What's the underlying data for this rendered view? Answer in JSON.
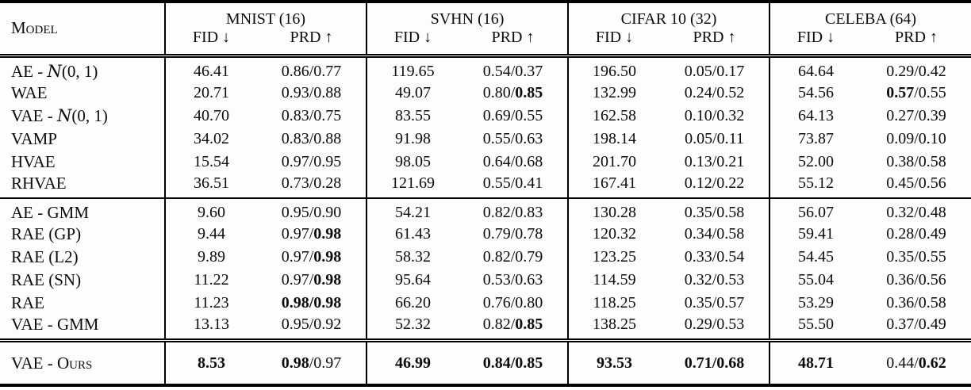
{
  "table": {
    "header": {
      "model_label": "Model",
      "col_fid": "FID ↓",
      "col_prd": "PRD ↑",
      "groups": [
        "MNIST (16)",
        "SVHN (16)",
        "CIFAR 10 (32)",
        "CELEBA (64)"
      ]
    },
    "sections": [
      {
        "rows": [
          {
            "model": "AE - 𝒩(0, 1)",
            "cells": [
              [
                {
                  "t": "46.41",
                  "b": false
                }
              ],
              [
                {
                  "t": "0.86/0.77",
                  "b": false
                }
              ],
              [
                {
                  "t": "119.65",
                  "b": false
                }
              ],
              [
                {
                  "t": "0.54/0.37",
                  "b": false
                }
              ],
              [
                {
                  "t": "196.50",
                  "b": false
                }
              ],
              [
                {
                  "t": "0.05/0.17",
                  "b": false
                }
              ],
              [
                {
                  "t": "64.64",
                  "b": false
                }
              ],
              [
                {
                  "t": "0.29/0.42",
                  "b": false
                }
              ]
            ]
          },
          {
            "model": "WAE",
            "cells": [
              [
                {
                  "t": "20.71",
                  "b": false
                }
              ],
              [
                {
                  "t": "0.93/0.88",
                  "b": false
                }
              ],
              [
                {
                  "t": "49.07",
                  "b": false
                }
              ],
              [
                {
                  "t": "0.80/",
                  "b": false
                },
                {
                  "t": "0.85",
                  "b": true
                }
              ],
              [
                {
                  "t": "132.99",
                  "b": false
                }
              ],
              [
                {
                  "t": "0.24/0.52",
                  "b": false
                }
              ],
              [
                {
                  "t": "54.56",
                  "b": false
                }
              ],
              [
                {
                  "t": "0.57",
                  "b": true
                },
                {
                  "t": "/0.55",
                  "b": false
                }
              ]
            ]
          },
          {
            "model": "VAE - 𝒩(0, 1)",
            "cells": [
              [
                {
                  "t": "40.70",
                  "b": false
                }
              ],
              [
                {
                  "t": "0.83/0.75",
                  "b": false
                }
              ],
              [
                {
                  "t": "83.55",
                  "b": false
                }
              ],
              [
                {
                  "t": "0.69/0.55",
                  "b": false
                }
              ],
              [
                {
                  "t": "162.58",
                  "b": false
                }
              ],
              [
                {
                  "t": "0.10/0.32",
                  "b": false
                }
              ],
              [
                {
                  "t": "64.13",
                  "b": false
                }
              ],
              [
                {
                  "t": "0.27/0.39",
                  "b": false
                }
              ]
            ]
          },
          {
            "model": "VAMP",
            "cells": [
              [
                {
                  "t": "34.02",
                  "b": false
                }
              ],
              [
                {
                  "t": "0.83/0.88",
                  "b": false
                }
              ],
              [
                {
                  "t": "91.98",
                  "b": false
                }
              ],
              [
                {
                  "t": "0.55/0.63",
                  "b": false
                }
              ],
              [
                {
                  "t": "198.14",
                  "b": false
                }
              ],
              [
                {
                  "t": "0.05/0.11",
                  "b": false
                }
              ],
              [
                {
                  "t": "73.87",
                  "b": false
                }
              ],
              [
                {
                  "t": "0.09/0.10",
                  "b": false
                }
              ]
            ]
          },
          {
            "model": "HVAE",
            "cells": [
              [
                {
                  "t": "15.54",
                  "b": false
                }
              ],
              [
                {
                  "t": "0.97/0.95",
                  "b": false
                }
              ],
              [
                {
                  "t": "98.05",
                  "b": false
                }
              ],
              [
                {
                  "t": "0.64/0.68",
                  "b": false
                }
              ],
              [
                {
                  "t": "201.70",
                  "b": false
                }
              ],
              [
                {
                  "t": "0.13/0.21",
                  "b": false
                }
              ],
              [
                {
                  "t": "52.00",
                  "b": false
                }
              ],
              [
                {
                  "t": "0.38/0.58",
                  "b": false
                }
              ]
            ]
          },
          {
            "model": "RHVAE",
            "cells": [
              [
                {
                  "t": "36.51",
                  "b": false
                }
              ],
              [
                {
                  "t": "0.73/0.28",
                  "b": false
                }
              ],
              [
                {
                  "t": "121.69",
                  "b": false
                }
              ],
              [
                {
                  "t": "0.55/0.41",
                  "b": false
                }
              ],
              [
                {
                  "t": "167.41",
                  "b": false
                }
              ],
              [
                {
                  "t": "0.12/0.22",
                  "b": false
                }
              ],
              [
                {
                  "t": "55.12",
                  "b": false
                }
              ],
              [
                {
                  "t": "0.45/0.56",
                  "b": false
                }
              ]
            ]
          }
        ]
      },
      {
        "rows": [
          {
            "model": "AE - GMM",
            "cells": [
              [
                {
                  "t": "9.60",
                  "b": false
                }
              ],
              [
                {
                  "t": "0.95/0.90",
                  "b": false
                }
              ],
              [
                {
                  "t": "54.21",
                  "b": false
                }
              ],
              [
                {
                  "t": "0.82/0.83",
                  "b": false
                }
              ],
              [
                {
                  "t": "130.28",
                  "b": false
                }
              ],
              [
                {
                  "t": "0.35/0.58",
                  "b": false
                }
              ],
              [
                {
                  "t": "56.07",
                  "b": false
                }
              ],
              [
                {
                  "t": "0.32/0.48",
                  "b": false
                }
              ]
            ]
          },
          {
            "model": "RAE (GP)",
            "cells": [
              [
                {
                  "t": "9.44",
                  "b": false
                }
              ],
              [
                {
                  "t": "0.97/",
                  "b": false
                },
                {
                  "t": "0.98",
                  "b": true
                }
              ],
              [
                {
                  "t": "61.43",
                  "b": false
                }
              ],
              [
                {
                  "t": "0.79/0.78",
                  "b": false
                }
              ],
              [
                {
                  "t": "120.32",
                  "b": false
                }
              ],
              [
                {
                  "t": "0.34/0.58",
                  "b": false
                }
              ],
              [
                {
                  "t": "59.41",
                  "b": false
                }
              ],
              [
                {
                  "t": "0.28/0.49",
                  "b": false
                }
              ]
            ]
          },
          {
            "model": "RAE (L2)",
            "cells": [
              [
                {
                  "t": "9.89",
                  "b": false
                }
              ],
              [
                {
                  "t": "0.97/",
                  "b": false
                },
                {
                  "t": "0.98",
                  "b": true
                }
              ],
              [
                {
                  "t": "58.32",
                  "b": false
                }
              ],
              [
                {
                  "t": "0.82/0.79",
                  "b": false
                }
              ],
              [
                {
                  "t": "123.25",
                  "b": false
                }
              ],
              [
                {
                  "t": "0.33/0.54",
                  "b": false
                }
              ],
              [
                {
                  "t": "54.45",
                  "b": false
                }
              ],
              [
                {
                  "t": "0.35/0.55",
                  "b": false
                }
              ]
            ]
          },
          {
            "model": "RAE (SN)",
            "cells": [
              [
                {
                  "t": "11.22",
                  "b": false
                }
              ],
              [
                {
                  "t": "0.97/",
                  "b": false
                },
                {
                  "t": "0.98",
                  "b": true
                }
              ],
              [
                {
                  "t": "95.64",
                  "b": false
                }
              ],
              [
                {
                  "t": "0.53/0.63",
                  "b": false
                }
              ],
              [
                {
                  "t": "114.59",
                  "b": false
                }
              ],
              [
                {
                  "t": "0.32/0.53",
                  "b": false
                }
              ],
              [
                {
                  "t": "55.04",
                  "b": false
                }
              ],
              [
                {
                  "t": "0.36/0.56",
                  "b": false
                }
              ]
            ]
          },
          {
            "model": "RAE",
            "cells": [
              [
                {
                  "t": "11.23",
                  "b": false
                }
              ],
              [
                {
                  "t": "0.98/0.98",
                  "b": true
                }
              ],
              [
                {
                  "t": "66.20",
                  "b": false
                }
              ],
              [
                {
                  "t": "0.76/0.80",
                  "b": false
                }
              ],
              [
                {
                  "t": "118.25",
                  "b": false
                }
              ],
              [
                {
                  "t": "0.35/0.57",
                  "b": false
                }
              ],
              [
                {
                  "t": "53.29",
                  "b": false
                }
              ],
              [
                {
                  "t": "0.36/0.58",
                  "b": false
                }
              ]
            ]
          },
          {
            "model": "VAE - GMM",
            "cells": [
              [
                {
                  "t": "13.13",
                  "b": false
                }
              ],
              [
                {
                  "t": "0.95/0.92",
                  "b": false
                }
              ],
              [
                {
                  "t": "52.32",
                  "b": false
                }
              ],
              [
                {
                  "t": "0.82/",
                  "b": false
                },
                {
                  "t": "0.85",
                  "b": true
                }
              ],
              [
                {
                  "t": "138.25",
                  "b": false
                }
              ],
              [
                {
                  "t": "0.29/0.53",
                  "b": false
                }
              ],
              [
                {
                  "t": "55.50",
                  "b": false
                }
              ],
              [
                {
                  "t": "0.37/0.49",
                  "b": false
                }
              ]
            ]
          }
        ]
      },
      {
        "rows": [
          {
            "model": "VAE - Ours",
            "cells": [
              [
                {
                  "t": "8.53",
                  "b": true
                }
              ],
              [
                {
                  "t": "0.98",
                  "b": true
                },
                {
                  "t": "/0.97",
                  "b": false
                }
              ],
              [
                {
                  "t": "46.99",
                  "b": true
                }
              ],
              [
                {
                  "t": "0.84/0.85",
                  "b": true
                }
              ],
              [
                {
                  "t": "93.53",
                  "b": true
                }
              ],
              [
                {
                  "t": "0.71/0.68",
                  "b": true
                }
              ],
              [
                {
                  "t": "48.71",
                  "b": true
                }
              ],
              [
                {
                  "t": "0.44/",
                  "b": false
                },
                {
                  "t": "0.62",
                  "b": true
                }
              ]
            ]
          }
        ]
      }
    ]
  }
}
